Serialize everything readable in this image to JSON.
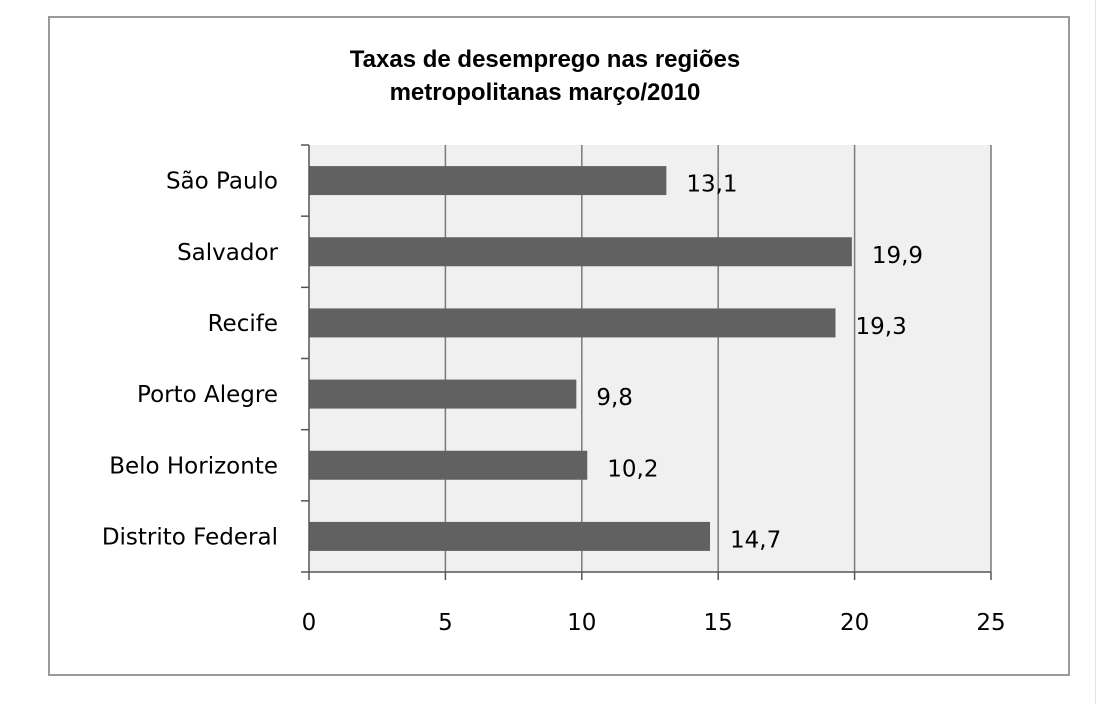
{
  "chart_data": {
    "type": "bar",
    "orientation": "horizontal",
    "title_lines": [
      "Taxas de desemprego nas regiões",
      "metropolitanas março/2010"
    ],
    "categories": [
      "São Paulo",
      "Salvador",
      "Recife",
      "Porto Alegre",
      "Belo Horizonte",
      "Distrito Federal"
    ],
    "values": [
      13.1,
      19.9,
      19.3,
      9.8,
      10.2,
      14.7
    ],
    "data_labels": [
      "13,1",
      "19,9",
      "19,3",
      "9,8",
      "10,2",
      "14,7"
    ],
    "xlim": [
      0,
      25
    ],
    "xticks": [
      0,
      5,
      10,
      15,
      20,
      25
    ],
    "grid": "vertical",
    "legend": "none",
    "colors": {
      "bar": "#616161",
      "plot_background": "#f0f0f0",
      "gridline": "#7a7a7a",
      "axis": "#555555",
      "frame": "#9a9a9a"
    }
  }
}
